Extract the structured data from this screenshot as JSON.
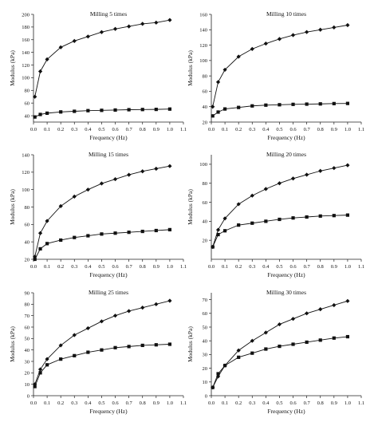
{
  "chart_data": [
    {
      "type": "line",
      "title": "Milling 5 times",
      "xlabel": "Frequency (Hz)",
      "ylabel": "Modulus (kPa)",
      "xlim": [
        0,
        1.1
      ],
      "ylim": [
        30,
        200
      ],
      "x_ticks": [
        "0.0",
        "0.1",
        "0.2",
        "0.3",
        "0.4",
        "0.5",
        "0.6",
        "0.7",
        "0.8",
        "0.9",
        "1.0",
        "1.1"
      ],
      "y_ticks": [
        "40",
        "60",
        "80",
        "100",
        "120",
        "140",
        "160",
        "180",
        "200"
      ],
      "grid": false,
      "series": [
        {
          "marker": "diamond",
          "x": [
            0.01,
            0.05,
            0.1,
            0.2,
            0.3,
            0.4,
            0.5,
            0.6,
            0.7,
            0.8,
            0.9,
            1.0
          ],
          "y": [
            70,
            110,
            129,
            148,
            158,
            165,
            172,
            177,
            181,
            185,
            187,
            191
          ]
        },
        {
          "marker": "square",
          "x": [
            0.01,
            0.05,
            0.1,
            0.2,
            0.3,
            0.4,
            0.5,
            0.6,
            0.7,
            0.8,
            0.9,
            1.0
          ],
          "y": [
            38,
            42,
            44,
            46,
            47,
            48,
            48.5,
            49,
            49.5,
            49.8,
            50,
            50.5
          ]
        }
      ]
    },
    {
      "type": "line",
      "title": "Milling 10 times",
      "xlabel": "Frequency (Hz)",
      "ylabel": "Modulus (kPa)",
      "xlim": [
        0,
        1.1
      ],
      "ylim": [
        20,
        160
      ],
      "x_ticks": [
        "0.0",
        "0.1",
        "0.2",
        "0.3",
        "0.4",
        "0.5",
        "0.6",
        "0.7",
        "0.8",
        "0.9",
        "1.0",
        "1.1"
      ],
      "y_ticks": [
        "20",
        "40",
        "60",
        "80",
        "100",
        "120",
        "140",
        "160"
      ],
      "grid": false,
      "series": [
        {
          "marker": "diamond",
          "x": [
            0.01,
            0.05,
            0.1,
            0.2,
            0.3,
            0.4,
            0.5,
            0.6,
            0.7,
            0.8,
            0.9,
            1.0
          ],
          "y": [
            40,
            72,
            88,
            105,
            115,
            122,
            128,
            133,
            137,
            140,
            143,
            146
          ]
        },
        {
          "marker": "square",
          "x": [
            0.01,
            0.05,
            0.1,
            0.2,
            0.3,
            0.4,
            0.5,
            0.6,
            0.7,
            0.8,
            0.9,
            1.0
          ],
          "y": [
            28,
            33,
            37,
            39,
            41,
            42,
            42.5,
            43,
            43.3,
            43.6,
            44,
            44.2
          ]
        }
      ]
    },
    {
      "type": "line",
      "title": "Milling 15 times",
      "xlabel": "Frequency (Hz)",
      "ylabel": "Modulus (kPa)",
      "xlim": [
        0,
        1.1
      ],
      "ylim": [
        20,
        140
      ],
      "x_ticks": [
        "0.0",
        "0.1",
        "0.2",
        "0.3",
        "0.4",
        "0.5",
        "0.6",
        "0.7",
        "0.8",
        "0.9",
        "1.0",
        "1.1"
      ],
      "y_ticks": [
        "20",
        "40",
        "60",
        "80",
        "100",
        "120",
        "140"
      ],
      "grid": false,
      "series": [
        {
          "marker": "diamond",
          "x": [
            0.01,
            0.05,
            0.1,
            0.2,
            0.3,
            0.4,
            0.5,
            0.6,
            0.7,
            0.8,
            0.9,
            1.0
          ],
          "y": [
            23,
            50,
            64,
            81,
            92,
            100,
            107,
            112,
            117,
            121,
            124,
            127
          ]
        },
        {
          "marker": "square",
          "x": [
            0.01,
            0.05,
            0.1,
            0.2,
            0.3,
            0.4,
            0.5,
            0.6,
            0.7,
            0.8,
            0.9,
            1.0
          ],
          "y": [
            20,
            32,
            38,
            42,
            45,
            47,
            49,
            50,
            51,
            52,
            53,
            54
          ]
        }
      ]
    },
    {
      "type": "line",
      "title": "Milling 20 times",
      "xlabel": "Frequency (Hz)",
      "ylabel": "Modulus (kPa)",
      "xlim": [
        0,
        1.1
      ],
      "ylim": [
        0,
        110
      ],
      "x_ticks": [
        "0.0",
        "0.1",
        "0.2",
        "0.3",
        "0.4",
        "0.5",
        "0.6",
        "0.7",
        "0.8",
        "0.9",
        "1.0",
        "1.1"
      ],
      "y_ticks": [
        "20",
        "40",
        "60",
        "80",
        "100"
      ],
      "grid": false,
      "series": [
        {
          "marker": "diamond",
          "x": [
            0.01,
            0.05,
            0.1,
            0.2,
            0.3,
            0.4,
            0.5,
            0.6,
            0.7,
            0.8,
            0.9,
            1.0
          ],
          "y": [
            13,
            31,
            43,
            58,
            67,
            74,
            80,
            85,
            89,
            93,
            96,
            99
          ]
        },
        {
          "marker": "square",
          "x": [
            0.01,
            0.05,
            0.1,
            0.2,
            0.3,
            0.4,
            0.5,
            0.6,
            0.7,
            0.8,
            0.9,
            1.0
          ],
          "y": [
            13,
            26,
            30,
            36,
            38,
            40,
            42,
            43.5,
            44.5,
            45.5,
            46,
            46.5
          ]
        }
      ]
    },
    {
      "type": "line",
      "title": "Milling 25 times",
      "xlabel": "Frequency (Hz)",
      "ylabel": "Modulus (kPa)",
      "xlim": [
        0,
        1.1
      ],
      "ylim": [
        0,
        90
      ],
      "x_ticks": [
        "0.0",
        "0.1",
        "0.2",
        "0.3",
        "0.4",
        "0.5",
        "0.6",
        "0.7",
        "0.8",
        "0.9",
        "1.0",
        "1.1"
      ],
      "y_ticks": [
        "0",
        "10",
        "20",
        "30",
        "40",
        "50",
        "60",
        "70",
        "80",
        "90"
      ],
      "grid": false,
      "series": [
        {
          "marker": "diamond",
          "x": [
            0.01,
            0.05,
            0.1,
            0.2,
            0.3,
            0.4,
            0.5,
            0.6,
            0.7,
            0.8,
            0.9,
            1.0
          ],
          "y": [
            10,
            23,
            32,
            44,
            53,
            59,
            65,
            70,
            74,
            77,
            80,
            83
          ]
        },
        {
          "marker": "square",
          "x": [
            0.01,
            0.05,
            0.1,
            0.2,
            0.3,
            0.4,
            0.5,
            0.6,
            0.7,
            0.8,
            0.9,
            1.0
          ],
          "y": [
            8,
            20,
            27,
            32,
            35,
            38,
            40,
            42,
            43,
            44,
            44.5,
            45
          ]
        }
      ]
    },
    {
      "type": "line",
      "title": "Milling 30 times",
      "xlabel": "Frequency (Hz)",
      "ylabel": "Modulus (kPa)",
      "xlim": [
        0,
        1.1
      ],
      "ylim": [
        0,
        75
      ],
      "x_ticks": [
        "0.0",
        "0.1",
        "0.2",
        "0.3",
        "0.4",
        "0.5",
        "0.6",
        "0.7",
        "0.8",
        "0.9",
        "1.0",
        "1.1"
      ],
      "y_ticks": [
        "0",
        "10",
        "20",
        "30",
        "40",
        "50",
        "60",
        "70"
      ],
      "grid": false,
      "series": [
        {
          "marker": "diamond",
          "x": [
            0.01,
            0.05,
            0.1,
            0.2,
            0.3,
            0.4,
            0.5,
            0.6,
            0.7,
            0.8,
            0.9,
            1.0
          ],
          "y": [
            6,
            14,
            22,
            33,
            40,
            46,
            52,
            56,
            60,
            63,
            66,
            69
          ]
        },
        {
          "marker": "square",
          "x": [
            0.01,
            0.05,
            0.1,
            0.2,
            0.3,
            0.4,
            0.5,
            0.6,
            0.7,
            0.8,
            0.9,
            1.0
          ],
          "y": [
            6,
            16,
            22,
            28,
            31,
            34,
            36,
            37.5,
            39,
            40.5,
            42,
            43
          ]
        }
      ]
    }
  ]
}
